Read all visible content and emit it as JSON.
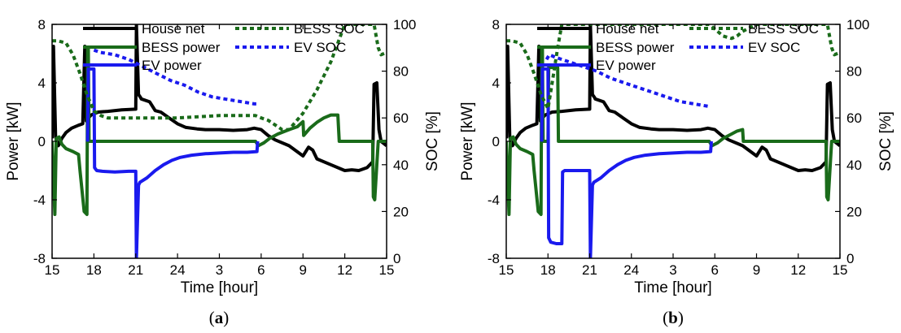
{
  "colors": {
    "house_net": "#000000",
    "bess": "#1a6b1a",
    "ev": "#1a1aee"
  },
  "chart_data": [
    {
      "type": "line",
      "panel_label": "a",
      "xlabel": "Time [hour]",
      "ylabel": "Power [kW]",
      "ylabel_right": "SOC [%]",
      "xlim": [
        15,
        39
      ],
      "ylim": [
        -8,
        8
      ],
      "ylim_right": [
        0,
        100
      ],
      "x_ticks": [
        15,
        18,
        21,
        24,
        27,
        30,
        33,
        36,
        39
      ],
      "x_tick_labels": [
        "15",
        "18",
        "21",
        "24",
        "3",
        "6",
        "9",
        "12",
        "15"
      ],
      "y_ticks": [
        -8,
        -4,
        0,
        4,
        8
      ],
      "y_ticks_right": [
        0,
        20,
        40,
        60,
        80,
        100
      ],
      "grid": false,
      "legend": [
        {
          "label": "House net",
          "style": "solid",
          "color": "#000000"
        },
        {
          "label": "BESS power",
          "style": "solid",
          "color": "#1a6b1a"
        },
        {
          "label": "EV power",
          "style": "solid",
          "color": "#1a1aee"
        },
        {
          "label": "BESS SOC",
          "style": "dotted",
          "color": "#1a6b1a"
        },
        {
          "label": "EV SOC",
          "style": "dotted",
          "color": "#1a1aee"
        }
      ],
      "series": [
        {
          "name": "House net",
          "axis": "left",
          "style": "solid",
          "color": "#000000",
          "x": [
            15,
            15.1,
            15.25,
            15.45,
            15.7,
            16.0,
            16.4,
            16.9,
            17.2,
            17.35,
            17.45,
            17.6,
            17.8,
            18.3,
            19,
            20,
            21.0,
            21.05,
            21.2,
            21.35,
            21.4,
            22.0,
            22.4,
            22.8,
            23.4,
            24,
            24.6,
            25.4,
            26,
            27,
            28,
            29,
            29.5,
            30,
            30.5,
            31,
            32,
            33,
            33.4,
            33.7,
            34,
            35,
            36,
            36.5,
            37,
            37.6,
            38.0,
            38.1,
            38.3,
            38.45,
            38.6,
            39
          ],
          "y": [
            0.2,
            6.5,
            0.3,
            -0.3,
            0.2,
            0.6,
            0.9,
            1.1,
            1.2,
            6.5,
            1.4,
            1.6,
            1.8,
            2.0,
            2.05,
            2.15,
            2.2,
            8,
            3.2,
            3.0,
            2.9,
            2.7,
            2.1,
            2.0,
            1.6,
            1.2,
            0.95,
            0.85,
            0.8,
            0.8,
            0.75,
            0.8,
            0.9,
            0.8,
            0.4,
            0.1,
            -0.3,
            -1.0,
            -0.4,
            -0.6,
            -1.2,
            -1.6,
            -2.0,
            -1.95,
            -2.0,
            -1.8,
            -1.4,
            3.9,
            4.0,
            0.8,
            0.0,
            -0.3
          ]
        },
        {
          "name": "BESS power",
          "axis": "left",
          "style": "solid",
          "color": "#1a6b1a",
          "x": [
            15,
            15.2,
            15.3,
            15.5,
            15.7,
            16.0,
            16.5,
            16.9,
            17.0,
            17.3,
            17.5,
            17.55,
            17.6,
            17.65,
            17.9,
            18.0,
            20,
            24,
            27,
            29.6,
            29.8,
            30.2,
            30.6,
            31.2,
            32,
            32.6,
            33,
            33.05,
            33.5,
            34,
            34.5,
            35,
            35.5,
            35.6,
            36,
            37,
            38.0,
            38.05,
            38.15,
            38.4,
            38.5,
            39
          ],
          "y": [
            0,
            -5.0,
            0.2,
            0.3,
            -0.2,
            -0.5,
            -0.7,
            -0.9,
            -2.0,
            -4.8,
            -5.0,
            6.4,
            6.4,
            0,
            0,
            0,
            0,
            0,
            0,
            0,
            -0.3,
            -0.1,
            0.2,
            0.5,
            0.8,
            1.0,
            1.35,
            0.4,
            0.9,
            1.3,
            1.6,
            1.8,
            1.8,
            0,
            0,
            0,
            0,
            -3.8,
            -4.0,
            0,
            0,
            0
          ]
        },
        {
          "name": "EV power",
          "axis": "left",
          "style": "solid",
          "color": "#1a1aee",
          "x": [
            17.55,
            17.6,
            17.75,
            18.0,
            18.05,
            18.2,
            18.6,
            19.5,
            20.5,
            21.0,
            21.05,
            21.2,
            21.3,
            21.8,
            22.4,
            23.0,
            23.6,
            24.2,
            25,
            26,
            27,
            28,
            29,
            29.4,
            29.7,
            29.75
          ],
          "y": [
            -0.02,
            4.95,
            4.95,
            4.95,
            -1.8,
            -2.0,
            -2.05,
            -2.1,
            -2.05,
            -2.05,
            -8,
            -3.0,
            -2.8,
            -2.5,
            -2.0,
            -1.6,
            -1.3,
            -1.1,
            -0.95,
            -0.85,
            -0.8,
            -0.75,
            -0.75,
            -0.72,
            -0.7,
            0
          ]
        },
        {
          "name": "BESS SOC",
          "axis": "right",
          "style": "dotted",
          "color": "#1a6b1a",
          "x": [
            15,
            15.4,
            16,
            16.5,
            17.0,
            17.5,
            18.0,
            18.5,
            19,
            21,
            24,
            27,
            29.6,
            30,
            30.5,
            31,
            31.5,
            32,
            33,
            33.5,
            34,
            35,
            35.5,
            36,
            36.5,
            37,
            38,
            38.1,
            38.4,
            38.6,
            39
          ],
          "y": [
            93,
            93,
            92,
            87,
            79,
            70,
            63,
            61,
            60,
            60,
            60,
            61,
            61,
            60,
            59,
            57,
            55,
            55,
            62,
            67,
            72,
            84,
            92,
            100,
            100,
            100,
            100,
            100,
            90,
            87,
            88
          ]
        },
        {
          "name": "EV SOC",
          "axis": "right",
          "style": "dotted",
          "color": "#1a1aee",
          "x": [
            18.0,
            18.5,
            19.5,
            20.5,
            21.5,
            22.5,
            23.5,
            24.5,
            25.5,
            26.5,
            27.5,
            28.5,
            29.5,
            29.7
          ],
          "y": [
            89,
            88,
            87,
            85,
            82,
            79,
            76,
            74,
            71,
            69,
            68,
            67,
            66,
            66
          ]
        }
      ]
    },
    {
      "type": "line",
      "panel_label": "b",
      "xlabel": "Time [hour]",
      "ylabel": "Power [kW]",
      "ylabel_right": "SOC [%]",
      "xlim": [
        15,
        39
      ],
      "ylim": [
        -8,
        8
      ],
      "ylim_right": [
        0,
        100
      ],
      "x_ticks": [
        15,
        18,
        21,
        24,
        27,
        30,
        33,
        36,
        39
      ],
      "x_tick_labels": [
        "15",
        "18",
        "21",
        "24",
        "3",
        "6",
        "9",
        "12",
        "15"
      ],
      "y_ticks": [
        -8,
        -4,
        0,
        4,
        8
      ],
      "y_ticks_right": [
        0,
        20,
        40,
        60,
        80,
        100
      ],
      "grid": false,
      "legend": [
        {
          "label": "House net",
          "style": "solid",
          "color": "#000000"
        },
        {
          "label": "BESS power",
          "style": "solid",
          "color": "#1a6b1a"
        },
        {
          "label": "EV power",
          "style": "solid",
          "color": "#1a1aee"
        },
        {
          "label": "BESS SOC",
          "style": "dotted",
          "color": "#1a6b1a"
        },
        {
          "label": "EV SOC",
          "style": "dotted",
          "color": "#1a1aee"
        }
      ],
      "series": [
        {
          "name": "House net",
          "axis": "left",
          "style": "solid",
          "color": "#000000",
          "x": [
            15,
            15.1,
            15.25,
            15.45,
            15.7,
            16.0,
            16.4,
            16.9,
            17.2,
            17.35,
            17.45,
            17.6,
            17.8,
            18.3,
            19,
            20,
            21.0,
            21.05,
            21.2,
            21.35,
            21.4,
            22.0,
            22.4,
            22.8,
            23.4,
            24,
            24.6,
            25.4,
            26,
            27,
            28,
            29,
            29.5,
            30,
            30.5,
            31,
            32,
            33,
            33.4,
            33.7,
            34,
            35,
            36,
            36.5,
            37,
            37.6,
            38.0,
            38.1,
            38.3,
            38.45,
            38.6,
            39
          ],
          "y": [
            0.2,
            6.5,
            0.3,
            -0.3,
            0.2,
            0.6,
            0.9,
            1.1,
            1.2,
            6.5,
            1.4,
            1.6,
            1.8,
            2.0,
            2.05,
            2.15,
            2.2,
            8,
            3.2,
            3.0,
            2.9,
            2.7,
            2.1,
            2.0,
            1.6,
            1.2,
            0.95,
            0.85,
            0.8,
            0.8,
            0.75,
            0.8,
            0.9,
            0.8,
            0.4,
            0.1,
            -0.3,
            -1.0,
            -0.4,
            -0.6,
            -1.2,
            -1.6,
            -2.0,
            -1.95,
            -2.0,
            -1.8,
            -1.4,
            3.9,
            4.0,
            0.8,
            0.0,
            -0.3
          ]
        },
        {
          "name": "BESS power",
          "axis": "left",
          "style": "solid",
          "color": "#1a6b1a",
          "x": [
            15,
            15.2,
            15.3,
            15.5,
            15.7,
            16.0,
            16.5,
            16.9,
            17.0,
            17.3,
            17.5,
            17.55,
            17.6,
            17.65,
            18.0,
            18.05,
            18.1,
            18.2,
            18.7,
            18.75,
            18.8,
            20,
            24,
            27,
            29.6,
            29.8,
            30.2,
            30.6,
            31.2,
            31.6,
            32,
            32.05,
            33,
            36,
            38.0,
            38.05,
            38.15,
            38.4,
            38.5,
            39
          ],
          "y": [
            0,
            -5.0,
            0.2,
            0.3,
            -0.2,
            -0.5,
            -0.7,
            -0.9,
            -2.0,
            -4.8,
            -5.0,
            6.4,
            6.4,
            0,
            0,
            5.05,
            5.05,
            5.05,
            5.05,
            0,
            0,
            0,
            0,
            0,
            0,
            -0.3,
            -0.1,
            0.2,
            0.5,
            0.7,
            0.8,
            0,
            0,
            0,
            0,
            -3.8,
            -4.0,
            0,
            0,
            0
          ]
        },
        {
          "name": "EV power",
          "axis": "left",
          "style": "solid",
          "color": "#1a1aee",
          "x": [
            17.55,
            17.6,
            17.75,
            18.0,
            18.05,
            18.2,
            18.6,
            18.7,
            19.0,
            19.05,
            19.2,
            20,
            21.0,
            21.05,
            21.2,
            21.3,
            21.8,
            22.4,
            23.0,
            23.6,
            24.2,
            25,
            26,
            27,
            28,
            29,
            29.4,
            29.7,
            29.75
          ],
          "y": [
            -0.02,
            4.95,
            4.95,
            4.95,
            -6.6,
            -6.9,
            -7.0,
            -7.0,
            -7.0,
            -2.1,
            -2.0,
            -2.0,
            -2.0,
            -8,
            -3.0,
            -2.8,
            -2.5,
            -2.0,
            -1.6,
            -1.3,
            -1.1,
            -0.95,
            -0.85,
            -0.8,
            -0.75,
            -0.75,
            -0.72,
            -0.7,
            0
          ]
        },
        {
          "name": "BESS SOC",
          "axis": "right",
          "style": "dotted",
          "color": "#1a6b1a",
          "x": [
            15,
            15.4,
            16,
            16.5,
            17.0,
            17.5,
            18.0,
            18.3,
            18.7,
            19.0,
            21,
            24,
            27,
            29.6,
            30,
            30.6,
            31.2,
            31.6,
            32,
            33,
            36,
            37,
            38,
            38.1,
            38.4,
            38.6,
            39
          ],
          "y": [
            93,
            93,
            92,
            87,
            79,
            70,
            64,
            75,
            90,
            100,
            100,
            100,
            100,
            100,
            98,
            95,
            94,
            95,
            97,
            100,
            100,
            100,
            100,
            100,
            90,
            87,
            88
          ]
        },
        {
          "name": "EV SOC",
          "axis": "right",
          "style": "dotted",
          "color": "#1a1aee",
          "x": [
            17.9,
            18.1,
            18.5,
            19.5,
            20.5,
            21.5,
            22.5,
            23.5,
            24.5,
            25.5,
            26.5,
            27.5,
            28.5,
            29.5,
            29.7
          ],
          "y": [
            85,
            87,
            86,
            84,
            82,
            80,
            77,
            75,
            73,
            71,
            69,
            67,
            66,
            65,
            65
          ]
        }
      ]
    }
  ]
}
